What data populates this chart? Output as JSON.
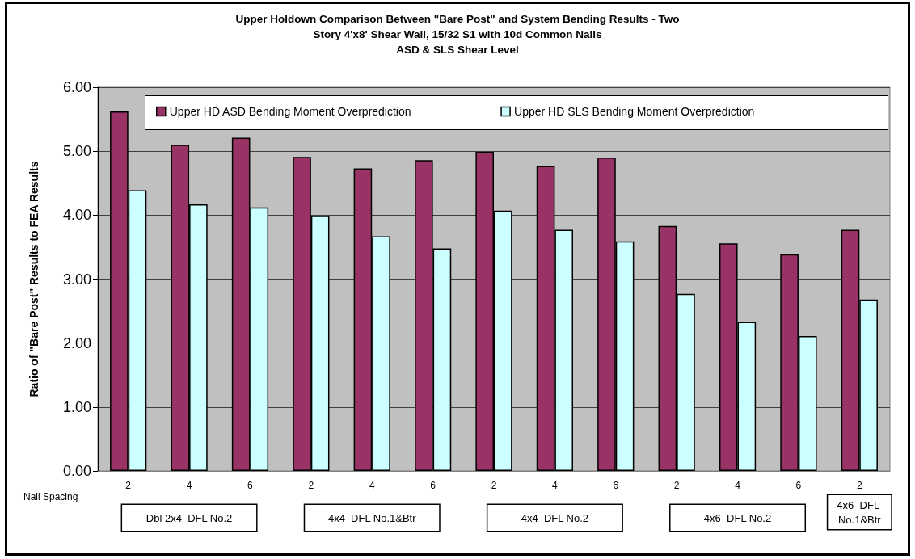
{
  "chart_data": {
    "type": "bar",
    "title": "Upper Holdown Comparison Between \"Bare Post\" and System Bending Results - Two\nStory 4'x8' Shear Wall, 15/32 S1 with 10d Common Nails\nASD & SLS Shear Level",
    "ylabel": "Ratio of \"Bare Post\" Results to FEA Results",
    "categories": [
      "2",
      "4",
      "6",
      "2",
      "4",
      "6",
      "2",
      "4",
      "6",
      "2",
      "4",
      "6",
      "2"
    ],
    "series": [
      {
        "name": "Upper HD ASD Bending Moment Overprediction",
        "color": "#993366",
        "values": [
          5.62,
          5.1,
          5.21,
          4.91,
          4.73,
          4.86,
          4.99,
          4.77,
          4.9,
          3.83,
          3.56,
          3.39,
          3.77
        ]
      },
      {
        "name": "Upper HD SLS Bending Moment Overprediction",
        "color": "#ccffff",
        "values": [
          4.39,
          4.17,
          4.12,
          3.99,
          3.67,
          3.48,
          4.07,
          3.77,
          3.59,
          2.77,
          2.33,
          2.11,
          2.68
        ]
      }
    ],
    "ylim": [
      0,
      6
    ],
    "yticks": [
      {
        "value": 0,
        "label": "0.00"
      },
      {
        "value": 1,
        "label": "1.00"
      },
      {
        "value": 2,
        "label": "2.00"
      },
      {
        "value": 3,
        "label": "3.00"
      },
      {
        "value": 4,
        "label": "4.00"
      },
      {
        "value": 5,
        "label": "5.00"
      },
      {
        "value": 6,
        "label": "6.00"
      }
    ],
    "grid": "y",
    "legend": "top",
    "annotations": [
      "Nail Spacing",
      "Dbl 2x4  DFL No.2",
      "4x4  DFL No.1&Btr",
      "4x4  DFL No.2",
      "4x6  DFL No.2",
      "4x6  DFL No.1&Btr"
    ]
  }
}
